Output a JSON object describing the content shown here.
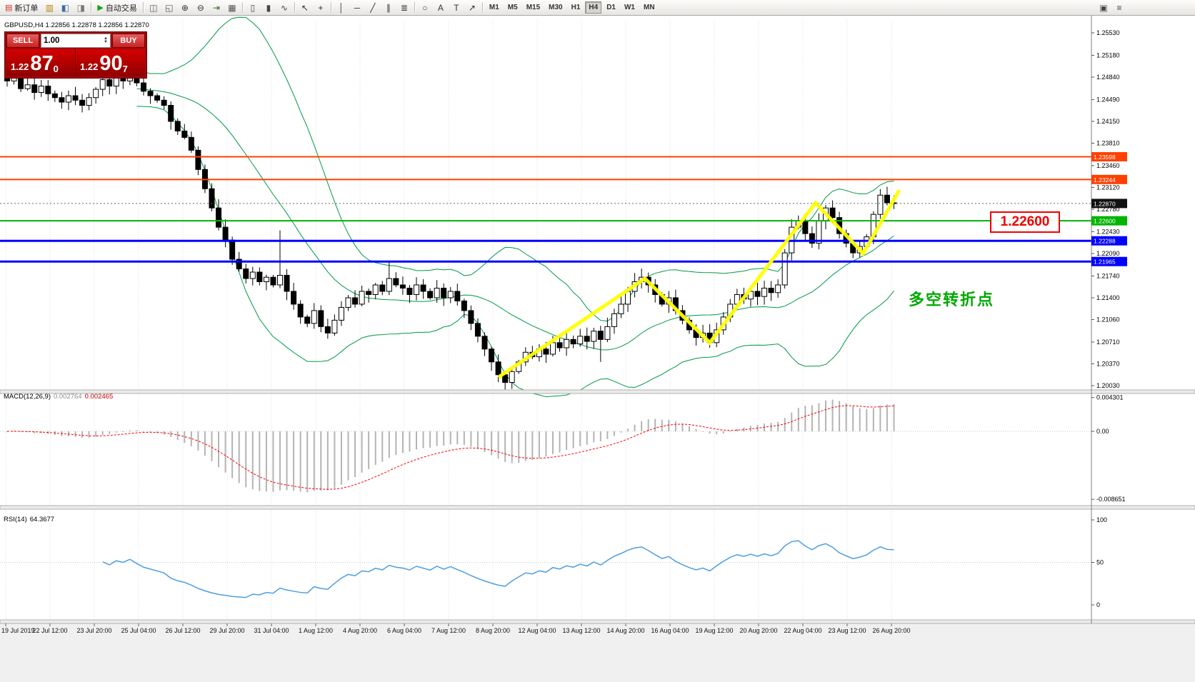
{
  "toolbar": {
    "items": [
      {
        "type": "button",
        "name": "new-order-button",
        "icon": "new-order-icon",
        "glyph": "▤",
        "glyph_color": "#cc3333",
        "label": "新订单"
      },
      {
        "type": "icon",
        "name": "market-watch-icon",
        "glyph": "▥",
        "color": "#b8860b"
      },
      {
        "type": "icon",
        "name": "data-window-icon",
        "glyph": "◧",
        "color": "#3a6ea5"
      },
      {
        "type": "icon",
        "name": "navigator-icon",
        "glyph": "◨",
        "color": "#777777"
      },
      {
        "type": "sep"
      },
      {
        "type": "button",
        "name": "autotrading-button",
        "icon": "autotrading-icon",
        "glyph": "▶",
        "glyph_color": "#17a317",
        "label": "自动交易"
      },
      {
        "type": "sep"
      },
      {
        "type": "icon",
        "name": "tile-windows-icon",
        "glyph": "◫",
        "color": "#555555"
      },
      {
        "type": "icon",
        "name": "cascade-windows-icon",
        "glyph": "◱",
        "color": "#555555"
      },
      {
        "type": "icon",
        "name": "zoom-in-icon",
        "glyph": "⊕",
        "color": "#333333"
      },
      {
        "type": "icon",
        "name": "zoom-out-icon",
        "glyph": "⊖",
        "color": "#333333"
      },
      {
        "type": "icon",
        "name": "auto-scroll-icon",
        "glyph": "⇥",
        "color": "#2f6f2f"
      },
      {
        "type": "icon",
        "name": "grid-icon",
        "glyph": "▦",
        "color": "#555555"
      },
      {
        "type": "sep"
      },
      {
        "type": "icon",
        "name": "bar-chart-icon",
        "glyph": "▯",
        "color": "#444444"
      },
      {
        "type": "icon",
        "name": "candlestick-icon",
        "glyph": "▮",
        "color": "#444444"
      },
      {
        "type": "icon",
        "name": "line-chart-icon",
        "glyph": "∿",
        "color": "#444444"
      },
      {
        "type": "sep"
      },
      {
        "type": "icon",
        "name": "cursor-icon",
        "glyph": "↖",
        "color": "#333333"
      },
      {
        "type": "icon",
        "name": "crosshair-icon",
        "glyph": "+",
        "color": "#333333"
      },
      {
        "type": "sep"
      },
      {
        "type": "icon",
        "name": "vertical-line-icon",
        "glyph": "│",
        "color": "#333333"
      },
      {
        "type": "icon",
        "name": "horizontal-line-icon",
        "glyph": "─",
        "color": "#333333"
      },
      {
        "type": "icon",
        "name": "trendline-icon",
        "glyph": "╱",
        "color": "#333333"
      },
      {
        "type": "icon",
        "name": "channel-icon",
        "glyph": "∥",
        "color": "#333333"
      },
      {
        "type": "icon",
        "name": "fibonacci-icon",
        "glyph": "≣",
        "color": "#333333"
      },
      {
        "type": "sep"
      },
      {
        "type": "icon",
        "name": "shapes-icon",
        "glyph": "○",
        "color": "#333333"
      },
      {
        "type": "icon",
        "name": "text-icon",
        "glyph": "A",
        "color": "#333333"
      },
      {
        "type": "icon",
        "name": "label-icon",
        "glyph": "T",
        "color": "#333333"
      },
      {
        "type": "icon",
        "name": "arrows-icon",
        "glyph": "↗",
        "color": "#333333"
      },
      {
        "type": "sep"
      }
    ],
    "timeframes": [
      "M1",
      "M5",
      "M15",
      "M30",
      "H1",
      "H4",
      "D1",
      "W1",
      "MN"
    ],
    "active_timeframe": "H4",
    "right_icons": [
      {
        "name": "arrange-icon",
        "glyph": "▣"
      },
      {
        "name": "properties-icon",
        "glyph": "≡"
      }
    ]
  },
  "symbol_label": "GBPUSD,H4  1.22856 1.22878 1.22856 1.22870",
  "one_click": {
    "sell_label": "SELL",
    "buy_label": "BUY",
    "volume": "1.00",
    "spin_up": "▲",
    "spin_down": "▼",
    "bid_small": "1.22",
    "bid_big": "87",
    "bid_sup": "0",
    "ask_small": "1.22",
    "ask_big": "90",
    "ask_sup": "7"
  },
  "annotations": {
    "price_box": "1.22600",
    "note": "多空转折点"
  },
  "macd_label": {
    "name": "MACD(12,26,9)",
    "v1": "0.002764",
    "v2": "0.002465"
  },
  "rsi_label": {
    "name": "RSI(14)",
    "value": "64.3677"
  },
  "chart_data": {
    "type": "candlestick",
    "symbol": "GBPUSD",
    "timeframe": "H4",
    "price_range": {
      "min": 1.2003,
      "max": 1.2553
    },
    "price_scale_ticks": [
      "1.25530",
      "1.25180",
      "1.24840",
      "1.24490",
      "1.24150",
      "1.23810",
      "1.23460",
      "1.23120",
      "1.22780",
      "1.22430",
      "1.22090",
      "1.21740",
      "1.21400",
      "1.21060",
      "1.20710",
      "1.20370",
      "1.20030"
    ],
    "hlines": [
      {
        "price": 1.23598,
        "text": "1.23598",
        "color": "#ff4000",
        "width": 2
      },
      {
        "price": 1.23244,
        "text": "1.23244",
        "color": "#ff4000",
        "width": 2
      },
      {
        "price": 1.226,
        "text": "1.22600",
        "color": "#00b400",
        "width": 2
      },
      {
        "price": 1.22288,
        "text": "1.22288",
        "color": "#0000ff",
        "width": 3
      },
      {
        "price": 1.21965,
        "text": "1.21965",
        "color": "#0000ff",
        "width": 3
      }
    ],
    "current_price": {
      "price": 1.2287,
      "text": "1.22870",
      "tag_color": "#111111"
    },
    "closes": [
      1.2478,
      1.2483,
      1.2466,
      1.2472,
      1.246,
      1.247,
      1.2458,
      1.2452,
      1.2445,
      1.2455,
      1.2448,
      1.244,
      1.2452,
      1.2465,
      1.248,
      1.247,
      1.2483,
      1.2478,
      1.2488,
      1.2475,
      1.2462,
      1.2455,
      1.2448,
      1.244,
      1.2415,
      1.24,
      1.239,
      1.237,
      1.234,
      1.231,
      1.228,
      1.225,
      1.223,
      1.22,
      1.2185,
      1.217,
      1.218,
      1.2165,
      1.2172,
      1.216,
      1.2175,
      1.215,
      1.213,
      1.211,
      1.21,
      1.212,
      1.2095,
      1.2085,
      1.2105,
      1.2125,
      1.214,
      1.213,
      1.215,
      1.2145,
      1.216,
      1.215,
      1.217,
      1.216,
      1.2155,
      1.2145,
      1.216,
      1.215,
      1.214,
      1.2155,
      1.214,
      1.215,
      1.2135,
      1.212,
      1.21,
      1.208,
      1.206,
      1.204,
      1.202,
      1.2008,
      1.2025,
      1.204,
      1.2055,
      1.2048,
      1.206,
      1.2052,
      1.207,
      1.2062,
      1.2075,
      1.2068,
      1.208,
      1.2072,
      1.2088,
      1.2075,
      1.2095,
      1.2115,
      1.213,
      1.215,
      1.2165,
      1.2172,
      1.216,
      1.2145,
      1.213,
      1.214,
      1.212,
      1.2105,
      1.209,
      1.2078,
      1.2085,
      1.207,
      1.209,
      1.211,
      1.213,
      1.2145,
      1.2138,
      1.215,
      1.2142,
      1.2155,
      1.2148,
      1.216,
      1.221,
      1.225,
      1.226,
      1.224,
      1.2225,
      1.226,
      1.228,
      1.2265,
      1.224,
      1.2225,
      1.221,
      1.222,
      1.2235,
      1.227,
      1.23,
      1.2288,
      1.2287
    ],
    "wick_overrides": {
      "40": {
        "high": 1.2245
      },
      "56": {
        "high": 1.2195
      },
      "73": {
        "low": 1.2003
      },
      "87": {
        "low": 1.204
      }
    },
    "bollinger": {
      "period": 20,
      "deviation": 2,
      "color": "#009944"
    },
    "macd": {
      "fast": 12,
      "slow": 26,
      "signal": 9,
      "scale_ticks": [
        "0.004301",
        "0.00",
        "-0.008651"
      ],
      "histogram_color": "#b4b4b4",
      "signal_color": "#ff0000"
    },
    "rsi": {
      "period": 14,
      "scale_ticks": [
        "100",
        "50",
        "0"
      ],
      "line_color": "#4d9ee0"
    },
    "zigzag_points": [
      [
        72,
        1.2016
      ],
      [
        93.5,
        1.217
      ],
      [
        103,
        1.207
      ],
      [
        118.5,
        1.2288
      ],
      [
        125.5,
        1.2209
      ],
      [
        130.8,
        1.2308
      ]
    ],
    "zigzag_color": "#ffff00",
    "time_labels": [
      "19 Jul 2019",
      "22 Jul 12:00",
      "23 Jul 20:00",
      "25 Jul 04:00",
      "26 Jul 12:00",
      "29 Jul 20:00",
      "31 Jul 04:00",
      "1 Aug 12:00",
      "4 Aug 20:00",
      "6 Aug 04:00",
      "7 Aug 12:00",
      "8 Aug 20:00",
      "12 Aug 04:00",
      "13 Aug 12:00",
      "14 Aug 20:00",
      "16 Aug 04:00",
      "19 Aug 12:00",
      "20 Aug 20:00",
      "22 Aug 04:00",
      "23 Aug 12:00",
      "26 Aug 20:00"
    ]
  }
}
